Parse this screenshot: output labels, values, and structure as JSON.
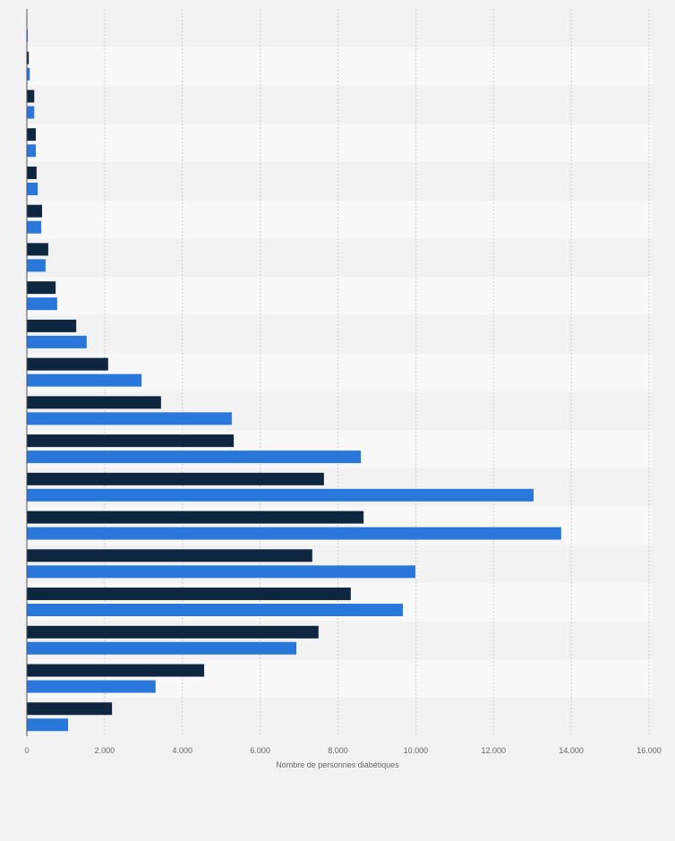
{
  "chart_data": {
    "type": "bar",
    "orientation": "horizontal",
    "title": "",
    "xlabel": "Nombre de personnes diabétiques",
    "ylabel": "",
    "xlim": [
      0,
      16000
    ],
    "xticks": [
      0,
      2000,
      4000,
      6000,
      8000,
      10000,
      12000,
      14000,
      16000
    ],
    "xtick_labels": [
      "0",
      "2.000",
      "4.000",
      "6.000",
      "8.000",
      "10.000",
      "12.000",
      "14.000",
      "16.000"
    ],
    "grid": true,
    "legend": "none",
    "categories_count": 19,
    "series": [
      {
        "color": "#0f2640",
        "values": [
          0,
          50,
          190,
          230,
          250,
          390,
          550,
          740,
          1270,
          2090,
          3450,
          5320,
          7640,
          8660,
          7340,
          8330,
          7500,
          4560,
          2190
        ]
      },
      {
        "color": "#2a77dc",
        "values": [
          25,
          75,
          190,
          230,
          280,
          370,
          480,
          780,
          1540,
          2950,
          5270,
          8590,
          13030,
          13740,
          9990,
          9670,
          6930,
          3310,
          1060
        ]
      }
    ]
  }
}
